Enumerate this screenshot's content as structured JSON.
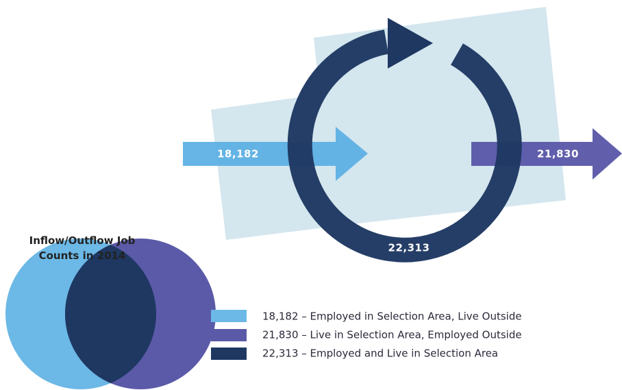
{
  "title": "Inflow/Outflow Job Counts in 2014",
  "arrows": {
    "inflow": "18,182",
    "outflow": "21,830",
    "internal": "22,313"
  },
  "legend": [
    "18,182 – Employed in Selection Area, Live Outside",
    "21,830 – Live in Selection Area, Employed Outside",
    "22,313 – Employed and Live in Selection Area"
  ]
}
